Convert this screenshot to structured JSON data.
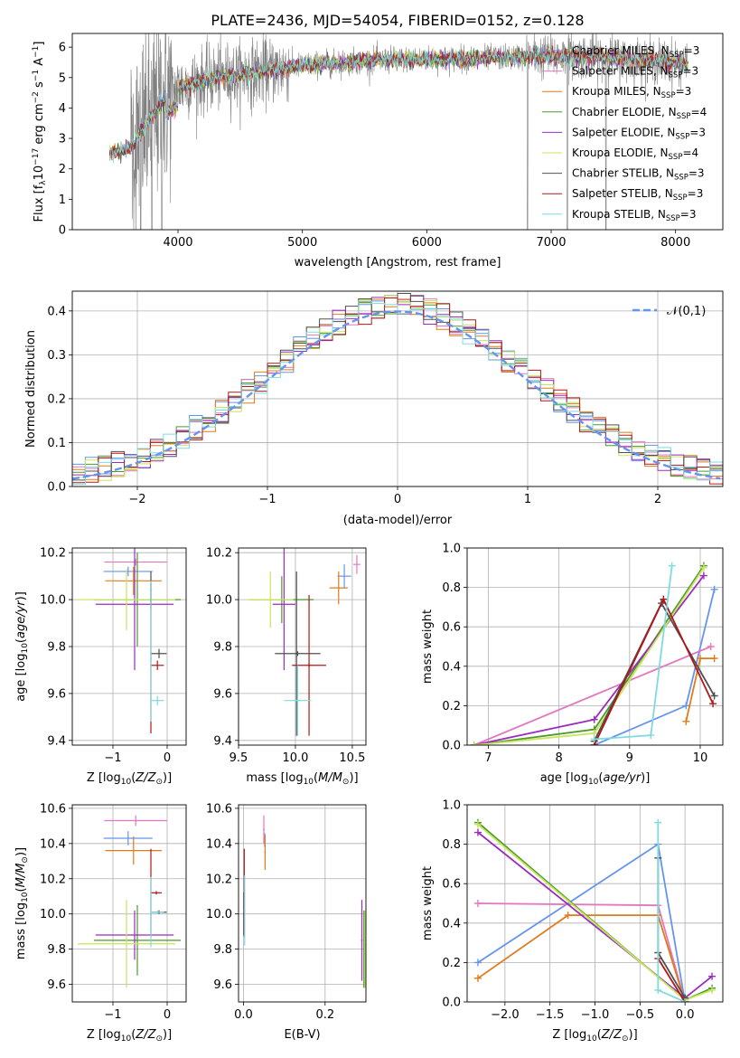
{
  "title": "PLATE=2436, MJD=54054, FIBERID=0152, z=0.128",
  "colors": {
    "Chabrier MILES": "#6495ed",
    "Salpeter MILES": "#e377c2",
    "Kroupa MILES": "#e07b1a",
    "Chabrier ELODIE": "#4f9a2c",
    "Salpeter ELODIE": "#9b2bc0",
    "Kroupa ELODIE": "#c8e65c",
    "Chabrier STELIB": "#505050",
    "Salpeter STELIB": "#b01818",
    "Kroupa STELIB": "#7fdbe0"
  },
  "chart_data": [
    {
      "id": "spectrum",
      "type": "line",
      "xlabel": "wavelength [Angstrom, rest frame]",
      "ylabel": "Flux [f_λ10^−17 erg cm^−2 s^−1 A^−1]",
      "xlim": [
        3150,
        8380
      ],
      "ylim": [
        0,
        6.45
      ],
      "xticks": [
        4000,
        5000,
        6000,
        7000,
        8000
      ],
      "yticks": [
        0,
        1,
        2,
        3,
        4,
        5,
        6
      ],
      "grid": false,
      "legend_position": "upper-right",
      "legend": [
        {
          "label": "Chabrier MILES, N_SSP=3",
          "main": "Chabrier MILES, N",
          "sub": "SSP",
          "tail": "=3",
          "model": "Chabrier MILES"
        },
        {
          "label": "Salpeter MILES, N_SSP=3",
          "main": "Salpeter MILES, N",
          "sub": "SSP",
          "tail": "=3",
          "model": "Salpeter MILES"
        },
        {
          "label": "Kroupa MILES, N_SSP=3",
          "main": "Kroupa MILES, N",
          "sub": "SSP",
          "tail": "=3",
          "model": "Kroupa MILES"
        },
        {
          "label": "Chabrier ELODIE, N_SSP=4",
          "main": "Chabrier ELODIE, N",
          "sub": "SSP",
          "tail": "=4",
          "model": "Chabrier ELODIE"
        },
        {
          "label": "Salpeter ELODIE, N_SSP=3",
          "main": "Salpeter ELODIE, N",
          "sub": "SSP",
          "tail": "=3",
          "model": "Salpeter ELODIE"
        },
        {
          "label": "Kroupa ELODIE, N_SSP=4",
          "main": "Kroupa ELODIE, N",
          "sub": "SSP",
          "tail": "=4",
          "model": "Kroupa ELODIE"
        },
        {
          "label": "Chabrier STELIB, N_SSP=3",
          "main": "Chabrier STELIB, N",
          "sub": "SSP",
          "tail": "=3",
          "model": "Chabrier STELIB"
        },
        {
          "label": "Salpeter STELIB, N_SSP=3",
          "main": "Salpeter STELIB, N",
          "sub": "SSP",
          "tail": "=3",
          "model": "Salpeter STELIB"
        },
        {
          "label": "Kroupa STELIB, N_SSP=3",
          "main": "Kroupa STELIB, N",
          "sub": "SSP",
          "tail": "=3",
          "model": "Kroupa STELIB"
        }
      ],
      "data_color": "#808080",
      "data_range": [
        3450,
        8100
      ],
      "continuum": {
        "x": [
          3450,
          3620,
          3700,
          3800,
          3900,
          4000,
          4300,
          4700,
          5000,
          5500,
          5800,
          6200,
          6600,
          7000,
          7400,
          7800,
          8100
        ],
        "y": [
          2.5,
          2.7,
          3.2,
          3.8,
          4.3,
          4.7,
          5.0,
          5.2,
          5.4,
          5.55,
          5.6,
          5.62,
          5.66,
          5.7,
          5.68,
          5.55,
          5.45
        ]
      },
      "noisy_regions": [
        {
          "range": [
            3620,
            3950
          ],
          "amplitude": 2.6
        },
        {
          "range": [
            3950,
            4900
          ],
          "amplitude": 0.9
        },
        {
          "range": [
            4900,
            6800
          ],
          "amplitude": 0.35
        },
        {
          "range": [
            6800,
            8100
          ],
          "amplitude": 0.6
        }
      ],
      "gaps": [
        {
          "x": 3700,
          "depth": 0
        },
        {
          "x": 3790,
          "depth": 0
        },
        {
          "x": 3870,
          "depth": 0
        },
        {
          "x": 6810,
          "depth": 0
        },
        {
          "x": 7130,
          "depth": 0
        },
        {
          "x": 7440,
          "depth": 0
        }
      ],
      "model_range": [
        3450,
        8100
      ]
    },
    {
      "id": "residuals",
      "type": "line",
      "xlabel": "(data-model)/error",
      "ylabel": "Normed distribution",
      "xlim": [
        -2.5,
        2.5
      ],
      "ylim": [
        0,
        0.445
      ],
      "xticks": [
        -2,
        -1,
        0,
        1,
        2
      ],
      "yticks": [
        0.0,
        0.1,
        0.2,
        0.3,
        0.4
      ],
      "grid": true,
      "legend_position": "upper-right",
      "reference": {
        "label": "𝒩(0,1)",
        "mean": 0,
        "sigma": 1,
        "color": "#6495ed",
        "dash": true
      },
      "bin_width": 0.1
    },
    {
      "id": "age-vs-Z",
      "type": "scatter",
      "xlabel": "Z [log10(Z/Z⊙)]",
      "ylabel": "age [log10(age/yr)]",
      "xlim": [
        -1.75,
        0.35
      ],
      "ylim": [
        9.38,
        10.22
      ],
      "xticks": [
        -1,
        0
      ],
      "yticks": [
        9.4,
        9.6,
        9.8,
        10.0,
        10.2
      ],
      "grid": true,
      "points": [
        {
          "model": "Chabrier MILES",
          "x": -0.72,
          "xerr": 0.45,
          "y": 10.12,
          "yerr": 0.02
        },
        {
          "model": "Salpeter MILES",
          "x": -0.58,
          "xerr": 0.58,
          "y": 10.16,
          "yerr": 0.015
        },
        {
          "model": "Kroupa MILES",
          "x": -0.62,
          "xerr": 0.52,
          "y": 10.08,
          "yerr": 0.06
        },
        {
          "model": "Chabrier ELODIE",
          "x": -0.55,
          "xerr": 0.8,
          "y": 10.0,
          "yerr": 0.2
        },
        {
          "model": "Salpeter ELODIE",
          "x": -0.6,
          "xerr": 0.72,
          "y": 9.98,
          "yerr": 0.28
        },
        {
          "model": "Kroupa ELODIE",
          "x": -0.75,
          "xerr": 0.9,
          "y": 10.0,
          "yerr": 0.13
        },
        {
          "model": "Chabrier STELIB",
          "x": -0.3,
          "xerr": 0.01,
          "y": 10.04,
          "yerr": 0.08
        },
        {
          "model": "Chabrier STELIB",
          "x": -0.15,
          "xerr": 0.14,
          "y": 9.77,
          "yerr": 0.02
        },
        {
          "model": "Salpeter STELIB",
          "x": -0.3,
          "xerr": 0.01,
          "y": 9.75,
          "yerr": 0.32
        },
        {
          "model": "Salpeter STELIB",
          "x": -0.18,
          "xerr": 0.12,
          "y": 9.72,
          "yerr": 0.02
        },
        {
          "model": "Kroupa STELIB",
          "x": -0.3,
          "xerr": 0.01,
          "y": 9.78,
          "yerr": 0.3
        },
        {
          "model": "Kroupa STELIB",
          "x": -0.18,
          "xerr": 0.12,
          "y": 9.57,
          "yerr": 0.02
        }
      ]
    },
    {
      "id": "age-vs-mass",
      "type": "scatter",
      "xlabel": "mass [log10(M/M⊙)]",
      "ylabel": "",
      "xlim": [
        9.5,
        10.62
      ],
      "ylim": [
        9.38,
        10.22
      ],
      "xticks": [
        9.5,
        10.0,
        10.5
      ],
      "yticks": [
        9.4,
        9.6,
        9.8,
        10.0,
        10.2
      ],
      "grid": true,
      "points": [
        {
          "model": "Chabrier MILES",
          "x": 10.43,
          "xerr": 0.06,
          "y": 10.1,
          "yerr": 0.05
        },
        {
          "model": "Salpeter MILES",
          "x": 10.54,
          "xerr": 0.03,
          "y": 10.15,
          "yerr": 0.04
        },
        {
          "model": "Kroupa MILES",
          "x": 10.38,
          "xerr": 0.08,
          "y": 10.05,
          "yerr": 0.07
        },
        {
          "model": "Chabrier ELODIE",
          "x": 9.88,
          "xerr": 0.28,
          "y": 10.0,
          "yerr": 0.1
        },
        {
          "model": "Salpeter ELODIE",
          "x": 9.9,
          "xerr": 0.1,
          "y": 9.98,
          "yerr": 0.28
        },
        {
          "model": "Kroupa ELODIE",
          "x": 9.78,
          "xerr": 0.2,
          "y": 10.0,
          "yerr": 0.12
        },
        {
          "model": "Chabrier STELIB",
          "x": 10.01,
          "xerr": 0.01,
          "y": 9.77,
          "yerr": 0.35
        },
        {
          "model": "Chabrier STELIB",
          "x": 10.02,
          "xerr": 0.2,
          "y": 9.77,
          "yerr": 0.01
        },
        {
          "model": "Salpeter STELIB",
          "x": 10.12,
          "xerr": 0.01,
          "y": 9.72,
          "yerr": 0.3
        },
        {
          "model": "Salpeter STELIB",
          "x": 10.12,
          "xerr": 0.15,
          "y": 9.72,
          "yerr": 0.01
        },
        {
          "model": "Kroupa STELIB",
          "x": 10.02,
          "xerr": 0.01,
          "y": 9.57,
          "yerr": 0.15
        },
        {
          "model": "Kroupa STELIB",
          "x": 10.02,
          "xerr": 0.12,
          "y": 9.57,
          "yerr": 0.01
        }
      ]
    },
    {
      "id": "mass-weight-vs-age",
      "type": "line",
      "xlabel": "age [log10(age/yr)]",
      "ylabel": "mass weight",
      "xlim": [
        6.7,
        10.32
      ],
      "ylim": [
        0,
        1.0
      ],
      "xticks": [
        7,
        8,
        9,
        10
      ],
      "yticks": [
        0.0,
        0.2,
        0.4,
        0.6,
        0.8,
        1.0
      ],
      "grid": true,
      "series": [
        {
          "model": "Chabrier MILES",
          "x": [
            8.5,
            9.8,
            10.2
          ],
          "y": [
            0.0,
            0.2,
            0.79
          ]
        },
        {
          "model": "Salpeter MILES",
          "x": [
            6.8,
            10.15
          ],
          "y": [
            0.0,
            0.5
          ]
        },
        {
          "model": "Kroupa MILES",
          "x": [
            9.8,
            10.0,
            10.2
          ],
          "y": [
            0.12,
            0.44,
            0.44
          ]
        },
        {
          "model": "Chabrier ELODIE",
          "x": [
            6.8,
            8.5,
            10.05
          ],
          "y": [
            0.0,
            0.08,
            0.91
          ]
        },
        {
          "model": "Salpeter ELODIE",
          "x": [
            6.8,
            8.5,
            10.05
          ],
          "y": [
            0.0,
            0.13,
            0.86
          ]
        },
        {
          "model": "Kroupa ELODIE",
          "x": [
            6.8,
            8.5,
            10.05
          ],
          "y": [
            0.0,
            0.06,
            0.9
          ]
        },
        {
          "model": "Chabrier STELIB",
          "x": [
            8.5,
            9.45,
            10.2
          ],
          "y": [
            0.02,
            0.72,
            0.25
          ]
        },
        {
          "model": "Salpeter STELIB",
          "x": [
            8.5,
            9.48,
            10.18
          ],
          "y": [
            0.0,
            0.74,
            0.21
          ]
        },
        {
          "model": "Kroupa STELIB",
          "x": [
            8.5,
            9.3,
            9.6
          ],
          "y": [
            0.03,
            0.05,
            0.91
          ]
        }
      ]
    },
    {
      "id": "mass-vs-Z",
      "type": "scatter",
      "xlabel": "Z [log10(Z/Z⊙)]",
      "ylabel": "mass [log10(M/M⊙)]",
      "xlim": [
        -1.75,
        0.35
      ],
      "ylim": [
        9.5,
        10.62
      ],
      "xticks": [
        -1,
        0
      ],
      "yticks": [
        9.6,
        9.8,
        10.0,
        10.2,
        10.4,
        10.6
      ],
      "grid": true,
      "points": [
        {
          "model": "Chabrier MILES",
          "x": -0.72,
          "xerr": 0.45,
          "y": 10.43,
          "yerr": 0.04
        },
        {
          "model": "Salpeter MILES",
          "x": -0.58,
          "xerr": 0.58,
          "y": 10.53,
          "yerr": 0.03
        },
        {
          "model": "Kroupa MILES",
          "x": -0.62,
          "xerr": 0.52,
          "y": 10.36,
          "yerr": 0.08
        },
        {
          "model": "Chabrier ELODIE",
          "x": -0.55,
          "xerr": 0.8,
          "y": 9.85,
          "yerr": 0.2
        },
        {
          "model": "Salpeter ELODIE",
          "x": -0.6,
          "xerr": 0.72,
          "y": 9.88,
          "yerr": 0.14
        },
        {
          "model": "Kroupa ELODIE",
          "x": -0.75,
          "xerr": 0.9,
          "y": 9.83,
          "yerr": 0.25
        },
        {
          "model": "Chabrier STELIB",
          "x": -0.15,
          "xerr": 0.14,
          "y": 10.01,
          "yerr": 0.01
        },
        {
          "model": "Salpeter STELIB",
          "x": -0.3,
          "xerr": 0.01,
          "y": 10.12,
          "yerr": 0.25
        },
        {
          "model": "Salpeter STELIB",
          "x": -0.2,
          "xerr": 0.1,
          "y": 10.12,
          "yerr": 0.01
        },
        {
          "model": "Kroupa STELIB",
          "x": -0.3,
          "xerr": 0.01,
          "y": 10.01,
          "yerr": 0.2
        },
        {
          "model": "Kroupa STELIB",
          "x": -0.18,
          "xerr": 0.12,
          "y": 10.01,
          "yerr": 0.01
        }
      ]
    },
    {
      "id": "mass-vs-ebv",
      "type": "scatter",
      "xlabel": "E(B-V)",
      "ylabel": "",
      "xlim": [
        -0.012,
        0.3
      ],
      "ylim": [
        9.5,
        10.62
      ],
      "xticks": [
        0.0,
        0.2
      ],
      "yticks": [
        9.6,
        9.8,
        10.0,
        10.2,
        10.4,
        10.6
      ],
      "grid": true,
      "points": [
        {
          "model": "Chabrier MILES",
          "x": 0.052,
          "xerr": 0.002,
          "y": 10.42,
          "yerr": 0.04
        },
        {
          "model": "Salpeter MILES",
          "x": 0.05,
          "xerr": 0.002,
          "y": 10.48,
          "yerr": 0.08
        },
        {
          "model": "Kroupa MILES",
          "x": 0.053,
          "xerr": 0.002,
          "y": 10.35,
          "yerr": 0.1
        },
        {
          "model": "Chabrier ELODIE",
          "x": 0.295,
          "xerr": 0.002,
          "y": 9.8,
          "yerr": 0.22
        },
        {
          "model": "Salpeter ELODIE",
          "x": 0.29,
          "xerr": 0.002,
          "y": 9.85,
          "yerr": 0.23
        },
        {
          "model": "Kroupa ELODIE",
          "x": 0.298,
          "xerr": 0.002,
          "y": 9.8,
          "yerr": 0.22
        },
        {
          "model": "Chabrier STELIB",
          "x": 0.001,
          "xerr": 0.002,
          "y": 10.0,
          "yerr": 0.12
        },
        {
          "model": "Salpeter STELIB",
          "x": 0.002,
          "xerr": 0.002,
          "y": 10.12,
          "yerr": 0.25
        },
        {
          "model": "Kroupa STELIB",
          "x": 0.003,
          "xerr": 0.002,
          "y": 10.02,
          "yerr": 0.2
        }
      ]
    },
    {
      "id": "mass-weight-vs-Z",
      "type": "line",
      "xlabel": "Z [log10(Z/Z⊙)]",
      "ylabel": "mass weight",
      "xlim": [
        -2.42,
        0.42
      ],
      "ylim": [
        0,
        1.0
      ],
      "xticks": [
        -2.0,
        -1.5,
        -1.0,
        -0.5,
        0.0
      ],
      "yticks": [
        0.0,
        0.2,
        0.4,
        0.6,
        0.8,
        1.0
      ],
      "grid": true,
      "series": [
        {
          "model": "Chabrier MILES",
          "x": [
            -2.3,
            -0.3,
            0.0
          ],
          "y": [
            0.2,
            0.8,
            0.0
          ]
        },
        {
          "model": "Salpeter MILES",
          "x": [
            -2.3,
            -0.3,
            0.0
          ],
          "y": [
            0.5,
            0.49,
            0.0
          ]
        },
        {
          "model": "Kroupa MILES",
          "x": [
            -2.3,
            -1.3,
            -0.3,
            0.0
          ],
          "y": [
            0.12,
            0.44,
            0.44,
            0.0
          ]
        },
        {
          "model": "Chabrier ELODIE",
          "x": [
            -2.3,
            0.0,
            0.3
          ],
          "y": [
            0.91,
            0.01,
            0.07
          ]
        },
        {
          "model": "Salpeter ELODIE",
          "x": [
            -2.3,
            0.0,
            0.3
          ],
          "y": [
            0.86,
            0.02,
            0.13
          ]
        },
        {
          "model": "Kroupa ELODIE",
          "x": [
            -2.3,
            0.0,
            0.3
          ],
          "y": [
            0.9,
            0.01,
            0.06
          ]
        },
        {
          "model": "Chabrier STELIB",
          "x": [
            -0.3,
            -0.3,
            0.0
          ],
          "y": [
            0.73,
            0.25,
            0.02
          ]
        },
        {
          "model": "Salpeter STELIB",
          "x": [
            -0.3,
            0.0
          ],
          "y": [
            0.22,
            0.0
          ]
        },
        {
          "model": "Kroupa STELIB",
          "x": [
            -0.3,
            -0.3,
            0.0
          ],
          "y": [
            0.91,
            0.06,
            0.0
          ]
        }
      ]
    }
  ]
}
